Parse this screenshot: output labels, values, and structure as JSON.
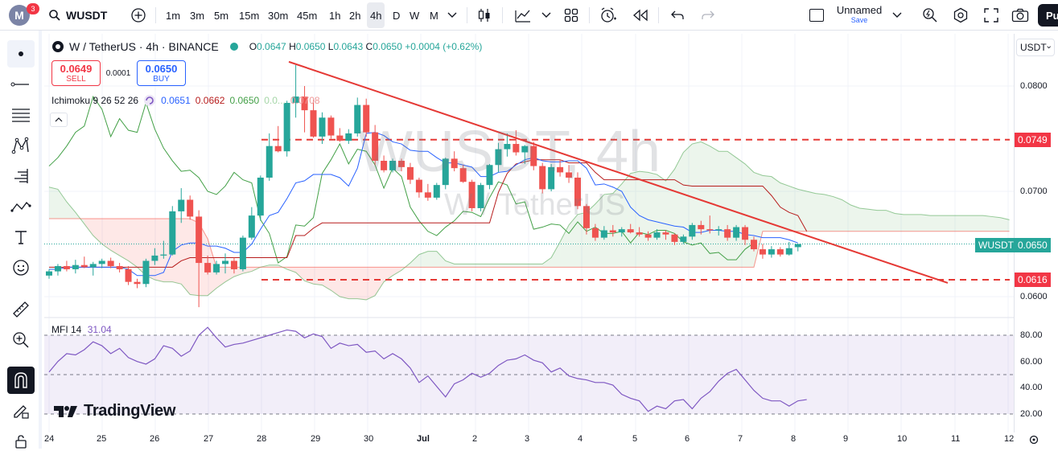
{
  "topbar": {
    "avatar_letter": "M",
    "notif_count": "3",
    "symbol": "WUSDT",
    "timeframes": [
      "1m",
      "3m",
      "5m",
      "15m",
      "30m",
      "45m",
      "1h",
      "2h",
      "4h",
      "D",
      "W",
      "M"
    ],
    "active_timeframe": "4h",
    "layout_name": "Unnamed",
    "layout_status": "Save",
    "publish_label": "Pu"
  },
  "legend": {
    "pair": "W / TetherUS · 4h · BINANCE",
    "o_label": "O",
    "o_value": "0.0647",
    "h_label": "H",
    "h_value": "0.0650",
    "l_label": "L",
    "l_value": "0.0643",
    "c_label": "C",
    "c_value": "0.0650",
    "change": "+0.0004 (+0.62%)",
    "sell_price": "0.0649",
    "sell_label": "SELL",
    "spread": "0.0001",
    "buy_price": "0.0650",
    "buy_label": "BUY",
    "ichimoku_label": "Ichimoku 9 26 52 26",
    "ichimoku_values": [
      "0.0651",
      "0.0662",
      "0.0650",
      "0.0...",
      "0.0708"
    ],
    "mfi_label": "MFI 14",
    "mfi_value": "31.04"
  },
  "watermark": {
    "symbol": "WUSDT, 4h",
    "name": "W / TetherUS"
  },
  "branding": "TradingView",
  "price_axis": {
    "currency": "USDT",
    "ticks": [
      "0.0800",
      "0.0700",
      "0.0600"
    ],
    "labels": {
      "top": "0.0749",
      "last_name": "WUSDT",
      "last": "0.0650",
      "bottom": "0.0616"
    }
  },
  "mfi_axis": {
    "ticks": [
      "80.00",
      "60.00",
      "40.00",
      "20.00"
    ]
  },
  "time_axis": [
    "24",
    "25",
    "26",
    "27",
    "28",
    "29",
    "30",
    "Jul",
    "2",
    "3",
    "4",
    "5",
    "6",
    "7",
    "8",
    "9",
    "10",
    "11",
    "12"
  ],
  "colors": {
    "up": "#26a69a",
    "down": "#ef5350",
    "conv": "#2962ff",
    "base": "#b71c1c",
    "lag": "#43a047",
    "trend": "#e53935",
    "mfi": "#7e57c2"
  },
  "chart_data": [
    {
      "type": "candlestick",
      "title": "W / TetherUS · 4h · BINANCE",
      "ylim": [
        0.058,
        0.0825
      ],
      "x_start": "Jun 24",
      "x_step": "4h",
      "candles": [
        [
          0.062,
          0.0626,
          0.0617,
          0.0624
        ],
        [
          0.0624,
          0.0631,
          0.062,
          0.0629
        ],
        [
          0.0629,
          0.0634,
          0.0624,
          0.0626
        ],
        [
          0.0626,
          0.0635,
          0.0622,
          0.063
        ],
        [
          0.063,
          0.0638,
          0.0627,
          0.0628
        ],
        [
          0.0628,
          0.0633,
          0.062,
          0.0631
        ],
        [
          0.0631,
          0.0636,
          0.0627,
          0.0634
        ],
        [
          0.0634,
          0.0637,
          0.0627,
          0.0629
        ],
        [
          0.0629,
          0.0632,
          0.0623,
          0.0626
        ],
        [
          0.0626,
          0.0629,
          0.0611,
          0.0614
        ],
        [
          0.0614,
          0.0617,
          0.0608,
          0.0612
        ],
        [
          0.0612,
          0.0636,
          0.0609,
          0.0634
        ],
        [
          0.0634,
          0.0646,
          0.063,
          0.0639
        ],
        [
          0.0639,
          0.0653,
          0.0636,
          0.064
        ],
        [
          0.064,
          0.0686,
          0.0639,
          0.0681
        ],
        [
          0.0681,
          0.0703,
          0.067,
          0.0692
        ],
        [
          0.0692,
          0.0696,
          0.0673,
          0.0676
        ],
        [
          0.0676,
          0.0682,
          0.059,
          0.0632
        ],
        [
          0.0632,
          0.0639,
          0.0621,
          0.0623
        ],
        [
          0.0623,
          0.0634,
          0.0621,
          0.0631
        ],
        [
          0.0631,
          0.0641,
          0.0622,
          0.0634
        ],
        [
          0.0634,
          0.0637,
          0.0622,
          0.0626
        ],
        [
          0.0626,
          0.0658,
          0.0624,
          0.0656
        ],
        [
          0.0656,
          0.0685,
          0.0654,
          0.0677
        ],
        [
          0.0677,
          0.0715,
          0.0672,
          0.0713
        ],
        [
          0.0713,
          0.0755,
          0.071,
          0.0743
        ],
        [
          0.0743,
          0.0762,
          0.0737,
          0.0738
        ],
        [
          0.0738,
          0.0786,
          0.0733,
          0.0784
        ],
        [
          0.0784,
          0.082,
          0.077,
          0.079
        ],
        [
          0.079,
          0.08,
          0.0756,
          0.0777
        ],
        [
          0.0777,
          0.0787,
          0.0751,
          0.0752
        ],
        [
          0.0752,
          0.0775,
          0.0745,
          0.077
        ],
        [
          0.077,
          0.0772,
          0.075,
          0.0753
        ],
        [
          0.0753,
          0.076,
          0.0747,
          0.0748
        ],
        [
          0.0748,
          0.0759,
          0.0745,
          0.0755
        ],
        [
          0.0755,
          0.0789,
          0.0752,
          0.0782
        ],
        [
          0.0782,
          0.0788,
          0.0752,
          0.0756
        ],
        [
          0.0756,
          0.0763,
          0.0725,
          0.0729
        ],
        [
          0.0729,
          0.0734,
          0.0718,
          0.072
        ],
        [
          0.072,
          0.0731,
          0.0718,
          0.0729
        ],
        [
          0.0729,
          0.0731,
          0.0719,
          0.0723
        ],
        [
          0.0723,
          0.0727,
          0.0707,
          0.0711
        ],
        [
          0.0711,
          0.0713,
          0.0694,
          0.0699
        ],
        [
          0.0699,
          0.0707,
          0.0691,
          0.0694
        ],
        [
          0.0694,
          0.0708,
          0.0692,
          0.0706
        ],
        [
          0.0706,
          0.0732,
          0.0702,
          0.0731
        ],
        [
          0.0731,
          0.0738,
          0.0719,
          0.0722
        ],
        [
          0.0722,
          0.0725,
          0.0708,
          0.0709
        ],
        [
          0.0709,
          0.0711,
          0.0681,
          0.0684
        ],
        [
          0.0684,
          0.0708,
          0.0681,
          0.0706
        ],
        [
          0.0706,
          0.0726,
          0.0702,
          0.0725
        ],
        [
          0.0725,
          0.0746,
          0.0718,
          0.074
        ],
        [
          0.074,
          0.0755,
          0.0733,
          0.0745
        ],
        [
          0.0745,
          0.0758,
          0.0734,
          0.0737
        ],
        [
          0.0737,
          0.0744,
          0.0726,
          0.0743
        ],
        [
          0.0743,
          0.0747,
          0.072,
          0.0724
        ],
        [
          0.0724,
          0.0727,
          0.0698,
          0.0702
        ],
        [
          0.0702,
          0.0726,
          0.07,
          0.0723
        ],
        [
          0.0723,
          0.073,
          0.0714,
          0.0718
        ],
        [
          0.0718,
          0.0725,
          0.0708,
          0.0713
        ],
        [
          0.0713,
          0.0718,
          0.0683,
          0.0686
        ],
        [
          0.0686,
          0.0688,
          0.0659,
          0.0665
        ],
        [
          0.0665,
          0.0669,
          0.0653,
          0.0656
        ],
        [
          0.0656,
          0.0667,
          0.0654,
          0.0663
        ],
        [
          0.0663,
          0.0668,
          0.0657,
          0.0661
        ],
        [
          0.0661,
          0.0666,
          0.0657,
          0.0664
        ],
        [
          0.0664,
          0.0669,
          0.066,
          0.0661
        ],
        [
          0.0661,
          0.0666,
          0.0657,
          0.0659
        ],
        [
          0.0659,
          0.0662,
          0.0653,
          0.0656
        ],
        [
          0.0656,
          0.0664,
          0.0654,
          0.0661
        ],
        [
          0.0661,
          0.0663,
          0.0654,
          0.0659
        ],
        [
          0.0659,
          0.066,
          0.0649,
          0.0652
        ],
        [
          0.0652,
          0.0659,
          0.065,
          0.0657
        ],
        [
          0.0657,
          0.067,
          0.0654,
          0.0668
        ],
        [
          0.0668,
          0.0672,
          0.0659,
          0.0664
        ],
        [
          0.0664,
          0.0677,
          0.066,
          0.0663
        ],
        [
          0.0663,
          0.0667,
          0.0658,
          0.0664
        ],
        [
          0.0664,
          0.0668,
          0.0653,
          0.0656
        ],
        [
          0.0656,
          0.0668,
          0.0653,
          0.0666
        ],
        [
          0.0666,
          0.0668,
          0.0649,
          0.0654
        ],
        [
          0.0654,
          0.0657,
          0.0643,
          0.0645
        ],
        [
          0.0645,
          0.065,
          0.0636,
          0.064
        ],
        [
          0.064,
          0.0648,
          0.0637,
          0.0645
        ],
        [
          0.0645,
          0.0647,
          0.0638,
          0.064
        ],
        [
          0.064,
          0.0652,
          0.0639,
          0.0646
        ],
        [
          0.0647,
          0.065,
          0.0643,
          0.065
        ]
      ],
      "conversion_line": [
        0.0626,
        0.0626,
        0.0628,
        0.0628,
        0.0628,
        0.0628,
        0.0628,
        0.0628,
        0.0628,
        0.0626,
        0.062,
        0.062,
        0.062,
        0.0623,
        0.0643,
        0.0649,
        0.0651,
        0.0651,
        0.0648,
        0.0648,
        0.0646,
        0.0642,
        0.0642,
        0.065,
        0.0664,
        0.0677,
        0.068,
        0.0693,
        0.0708,
        0.071,
        0.0716,
        0.0716,
        0.0716,
        0.0713,
        0.0705,
        0.0722,
        0.0755,
        0.0756,
        0.0753,
        0.0747,
        0.0745,
        0.0739,
        0.0738,
        0.0738,
        0.0732,
        0.0727,
        0.0727,
        0.0725,
        0.0723,
        0.0714,
        0.0714,
        0.0718,
        0.0719,
        0.0725,
        0.073,
        0.0732,
        0.0729,
        0.0728,
        0.0728,
        0.0729,
        0.0729,
        0.0722,
        0.0706,
        0.0707,
        0.0704,
        0.07,
        0.0685,
        0.0677,
        0.0673,
        0.0671,
        0.0669,
        0.0667,
        0.0666,
        0.0661,
        0.0661,
        0.0663,
        0.0663,
        0.0662,
        0.0662,
        0.0659,
        0.0658,
        0.0656,
        0.0656,
        0.0656,
        0.0654,
        0.0651
      ],
      "base_line": [
        0.0628,
        0.0628,
        0.0628,
        0.0628,
        0.0628,
        0.0628,
        0.0628,
        0.0628,
        0.0628,
        0.0628,
        0.0628,
        0.0628,
        0.0628,
        0.0628,
        0.0628,
        0.0634,
        0.0637,
        0.0637,
        0.0637,
        0.0637,
        0.0637,
        0.0637,
        0.0637,
        0.0637,
        0.0637,
        0.0637,
        0.0637,
        0.0637,
        0.0658,
        0.0658,
        0.0665,
        0.067,
        0.067,
        0.067,
        0.067,
        0.067,
        0.067,
        0.067,
        0.067,
        0.067,
        0.067,
        0.067,
        0.067,
        0.067,
        0.067,
        0.067,
        0.067,
        0.067,
        0.067,
        0.067,
        0.067,
        0.0699,
        0.0717,
        0.0726,
        0.0728,
        0.073,
        0.073,
        0.073,
        0.073,
        0.0727,
        0.0727,
        0.0727,
        0.0718,
        0.0711,
        0.0711,
        0.0711,
        0.0711,
        0.0711,
        0.0711,
        0.0711,
        0.0711,
        0.0711,
        0.0706,
        0.0705,
        0.0705,
        0.0705,
        0.0705,
        0.0705,
        0.0705,
        0.0705,
        0.0705,
        0.0705,
        0.0696,
        0.0685,
        0.068,
        0.0677,
        0.0662
      ],
      "lagging_span": [
        0.0724,
        0.0732,
        0.0743,
        0.0756,
        0.0762,
        0.079,
        0.0778,
        0.0752,
        0.0769,
        0.0758,
        0.0756,
        0.0784,
        0.0759,
        0.0741,
        0.0729,
        0.0719,
        0.072,
        0.0713,
        0.07,
        0.0697,
        0.0705,
        0.0718,
        0.0711,
        0.0708,
        0.0673,
        0.066,
        0.0632,
        0.0638,
        0.0668,
        0.0667,
        0.0675,
        0.0717,
        0.073,
        0.0745,
        0.0726,
        0.074,
        0.0738,
        0.0725,
        0.0703,
        0.0722,
        0.0714,
        0.0685,
        0.0672,
        0.0662,
        0.0658,
        0.0666,
        0.0672,
        0.0681,
        0.068,
        0.0676,
        0.0694,
        0.0709,
        0.0706,
        0.0688,
        0.069,
        0.0664,
        0.0666,
        0.0669,
        0.0668,
        0.066,
        0.0671,
        0.0662,
        0.0666,
        0.066,
        0.066,
        0.0662,
        0.0651,
        0.0661,
        0.0659,
        0.0663,
        0.0663,
        0.066,
        0.0652,
        0.0649,
        0.0651,
        0.0641,
        0.0642,
        0.0635,
        0.0635,
        0.0645,
        0.0651
      ],
      "lagging_start": 0,
      "senkou_a": [
        0.0704,
        0.0702,
        0.069,
        0.068,
        0.0669,
        0.0658,
        0.065,
        0.0644,
        0.0639,
        0.0634,
        0.0628,
        0.062,
        0.0616,
        0.0614,
        0.0614,
        0.0612,
        0.0602,
        0.0601,
        0.0601,
        0.0608,
        0.0614,
        0.0619,
        0.0622,
        0.0624,
        0.0628,
        0.063,
        0.063,
        0.0626,
        0.0623,
        0.0615,
        0.0612,
        0.0611,
        0.0606,
        0.06,
        0.0598,
        0.0598,
        0.0597,
        0.0601,
        0.0614,
        0.062,
        0.0625,
        0.0632,
        0.064,
        0.0643,
        0.0643,
        0.0634,
        0.0631,
        0.0631,
        0.0631,
        0.0631,
        0.0631,
        0.0631,
        0.0631,
        0.0631,
        0.0631,
        0.0631,
        0.0631,
        0.0637,
        0.0652,
        0.0668,
        0.0678,
        0.068,
        0.0688,
        0.0697,
        0.0698,
        0.0707,
        0.0717,
        0.0719,
        0.0718,
        0.0716,
        0.071,
        0.0721,
        0.0737,
        0.0745,
        0.0747,
        0.0743,
        0.0738,
        0.0738,
        0.0732,
        0.0726,
        0.0718,
        0.0715,
        0.0714,
        0.0708,
        0.0705,
        0.0702,
        0.07,
        0.0698,
        0.0697,
        0.0695,
        0.0692,
        0.0687,
        0.0684,
        0.0683,
        0.0682,
        0.0682,
        0.0679,
        0.0678,
        0.0678,
        0.0678,
        0.0677,
        0.0677,
        0.0677,
        0.0677,
        0.0677,
        0.0677,
        0.0677,
        0.0676,
        0.0675,
        0.0673,
        0.0671
      ],
      "senkou_b": [
        0.0674,
        0.0674,
        0.0674,
        0.0674,
        0.0674,
        0.0674,
        0.0674,
        0.0674,
        0.0674,
        0.0674,
        0.0674,
        0.0674,
        0.0674,
        0.0674,
        0.0674,
        0.0674,
        0.0674,
        0.067,
        0.0655,
        0.0628,
        0.0628,
        0.0628,
        0.0628,
        0.0628,
        0.0628,
        0.0628,
        0.0628,
        0.0628,
        0.0628,
        0.0628,
        0.0628,
        0.0628,
        0.0628,
        0.0628,
        0.0628,
        0.0628,
        0.0628,
        0.0628,
        0.0628,
        0.0628,
        0.0628,
        0.0628,
        0.0628,
        0.0628,
        0.0628,
        0.0628,
        0.0628,
        0.0628,
        0.0628,
        0.0628,
        0.0628,
        0.0628,
        0.0628,
        0.0628,
        0.0628,
        0.0628,
        0.0628,
        0.0628,
        0.0628,
        0.0628,
        0.0628,
        0.0628,
        0.0628,
        0.0628,
        0.0628,
        0.0628,
        0.0628,
        0.0628,
        0.0628,
        0.0628,
        0.0628,
        0.0628,
        0.0628,
        0.0628,
        0.0628,
        0.0628,
        0.0628,
        0.0628,
        0.0628,
        0.0628,
        0.0628,
        0.0662,
        0.0662,
        0.0662,
        0.0662,
        0.0662,
        0.0662,
        0.0662,
        0.0662,
        0.0662,
        0.0662,
        0.0662,
        0.0662,
        0.0662,
        0.0662,
        0.0662,
        0.0662,
        0.0662,
        0.0662,
        0.0662,
        0.0662,
        0.0662,
        0.0662,
        0.0662,
        0.0662,
        0.0662,
        0.0662,
        0.0662,
        0.0662,
        0.0662,
        0.0662
      ],
      "horizontal_lines": [
        0.0749,
        0.0616
      ],
      "last_price_line": 0.065,
      "trendline": {
        "from": [
          0.0823
        ],
        "to": [
          0.0613
        ]
      }
    },
    {
      "type": "line",
      "title": "MFI 14",
      "ylim": [
        15,
        90
      ],
      "band": [
        20,
        80
      ],
      "midline": 50,
      "values": [
        52,
        60,
        66,
        65,
        69,
        75,
        72,
        66,
        70,
        63,
        60,
        58,
        62,
        72,
        70,
        64,
        68,
        80,
        86,
        78,
        71,
        73,
        74,
        76,
        78,
        80,
        82,
        84,
        83,
        78,
        81,
        79,
        70,
        74,
        72,
        73,
        67,
        68,
        62,
        66,
        62,
        55,
        44,
        49,
        41,
        33,
        43,
        46,
        51,
        48,
        51,
        57,
        61,
        62,
        65,
        61,
        59,
        52,
        55,
        49,
        47,
        46,
        44,
        44,
        42,
        35,
        32,
        30,
        22,
        26,
        24,
        30,
        31,
        24,
        32,
        37,
        45,
        51,
        54,
        46,
        38,
        32,
        30,
        30,
        26,
        30,
        31
      ]
    }
  ]
}
